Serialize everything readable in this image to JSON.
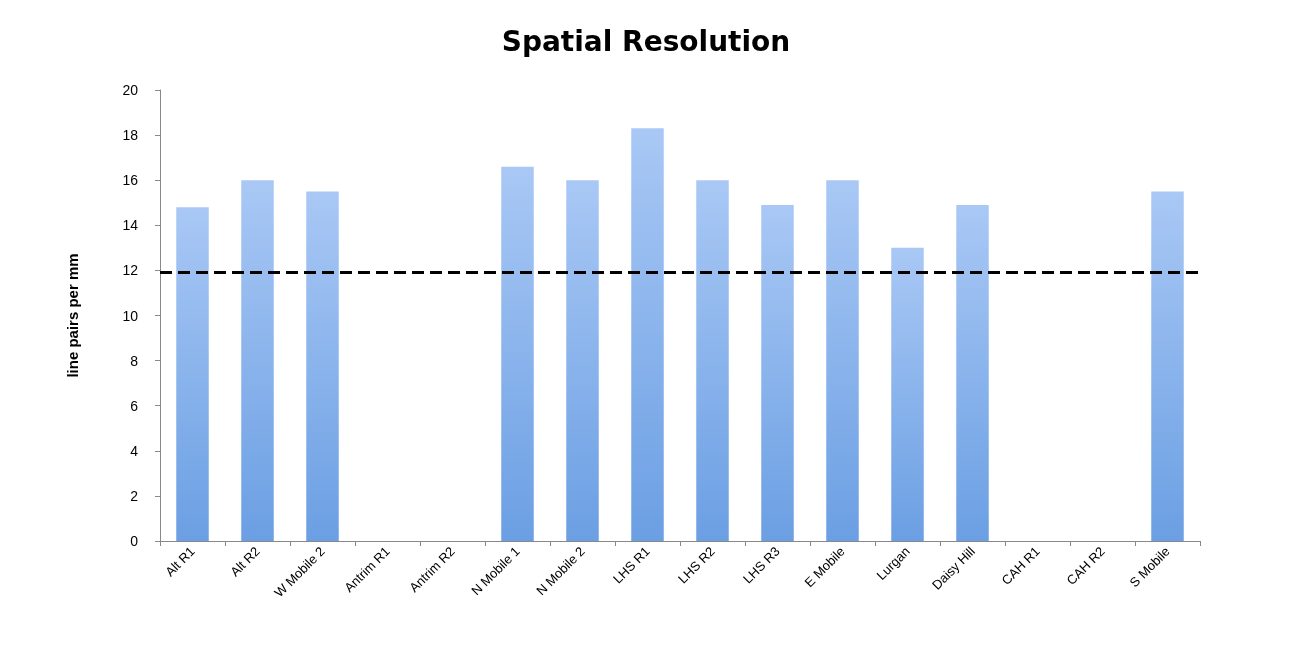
{
  "chart_data": {
    "type": "bar",
    "title": "Spatial Resolution",
    "ylabel": "line pairs per mm",
    "categories": [
      "Alt R1",
      "Alt R2",
      "W Mobile 2",
      "Antrim R1",
      "Antrim R2",
      "N Mobile 1",
      "N Mobile 2",
      "LHS R1",
      "LHS R2",
      "LHS R3",
      "E Mobile",
      "Lurgan",
      "Daisy Hill",
      "CAH R1",
      "CAH R2",
      "S Mobile"
    ],
    "values": [
      14.8,
      16,
      15.5,
      null,
      null,
      16.6,
      16,
      18.3,
      16,
      14.9,
      16,
      13,
      14.9,
      null,
      null,
      15.5
    ],
    "color": "#6b9fe3",
    "ylim": [
      0,
      20
    ],
    "yticks": [
      0,
      2,
      4,
      6,
      8,
      10,
      12,
      14,
      16,
      18,
      20
    ],
    "grid": false,
    "ref_lines": [
      {
        "axis": "y",
        "value": 11.9,
        "color": "#000000",
        "line_style": "dashed"
      }
    ]
  }
}
